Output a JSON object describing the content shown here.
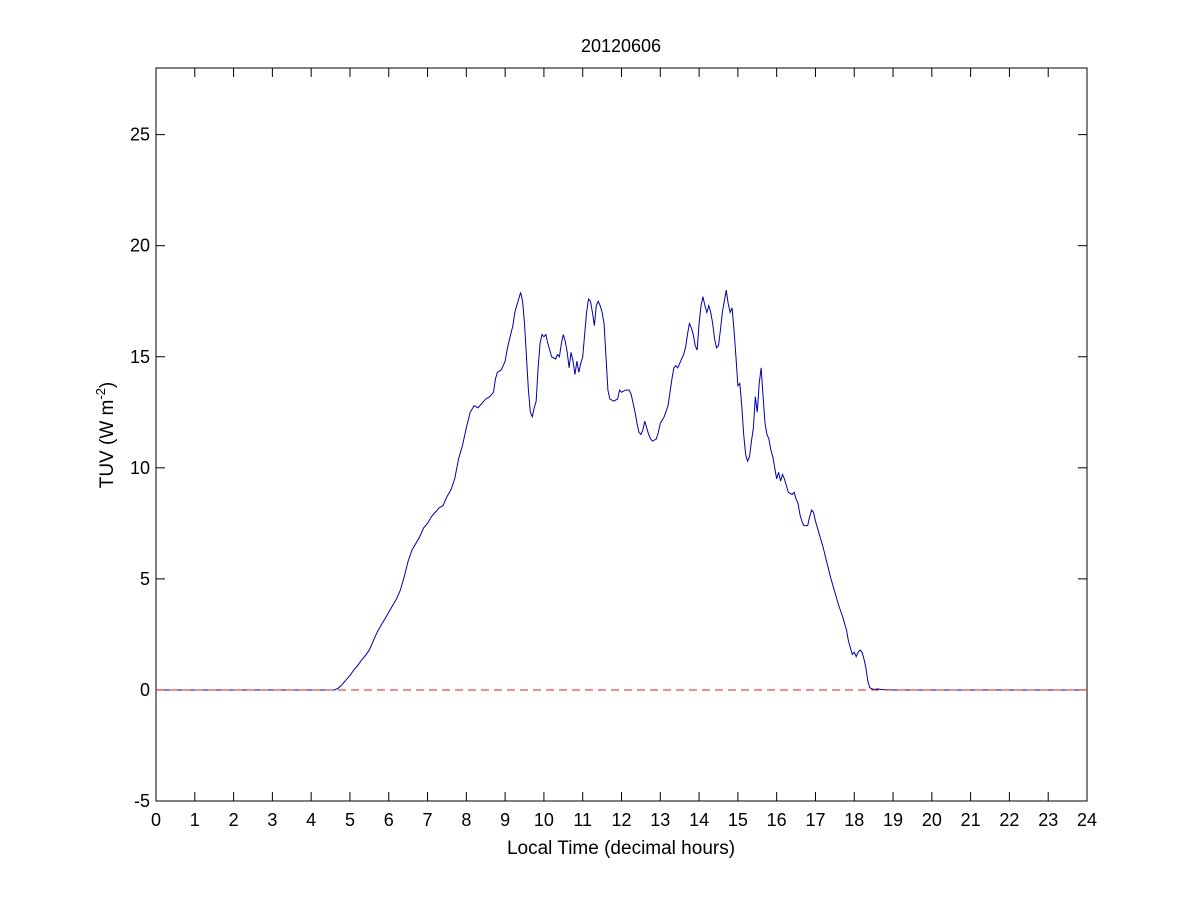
{
  "chart_data": {
    "type": "line",
    "title": "20120606",
    "xlabel": "Local Time (decimal hours)",
    "ylabel": {
      "main": "TUV (W m",
      "superscript": "-2",
      "suffix": ")"
    },
    "xlim": [
      0,
      24
    ],
    "ylim": [
      -5,
      28
    ],
    "xticks": [
      0,
      1,
      2,
      3,
      4,
      5,
      6,
      7,
      8,
      9,
      10,
      11,
      12,
      13,
      14,
      15,
      16,
      17,
      18,
      19,
      20,
      21,
      22,
      23,
      24
    ],
    "yticks": [
      -5,
      0,
      5,
      10,
      15,
      20,
      25
    ],
    "grid": false,
    "series": [
      {
        "color": "#0000aa",
        "style": "solid",
        "points": [
          [
            0,
            0
          ],
          [
            4.5,
            0
          ],
          [
            4.6,
            0
          ],
          [
            4.7,
            0.08
          ],
          [
            4.8,
            0.25
          ],
          [
            4.9,
            0.45
          ],
          [
            5.0,
            0.65
          ],
          [
            5.1,
            0.9
          ],
          [
            5.2,
            1.1
          ],
          [
            5.3,
            1.35
          ],
          [
            5.4,
            1.55
          ],
          [
            5.5,
            1.8
          ],
          [
            5.6,
            2.2
          ],
          [
            5.7,
            2.6
          ],
          [
            5.8,
            2.9
          ],
          [
            5.9,
            3.2
          ],
          [
            6.0,
            3.5
          ],
          [
            6.1,
            3.8
          ],
          [
            6.2,
            4.1
          ],
          [
            6.3,
            4.5
          ],
          [
            6.4,
            5.1
          ],
          [
            6.5,
            5.8
          ],
          [
            6.6,
            6.3
          ],
          [
            6.7,
            6.6
          ],
          [
            6.8,
            6.9
          ],
          [
            6.9,
            7.3
          ],
          [
            7.0,
            7.5
          ],
          [
            7.1,
            7.8
          ],
          [
            7.2,
            8.0
          ],
          [
            7.3,
            8.2
          ],
          [
            7.4,
            8.3
          ],
          [
            7.5,
            8.7
          ],
          [
            7.6,
            9.0
          ],
          [
            7.7,
            9.5
          ],
          [
            7.8,
            10.4
          ],
          [
            7.9,
            11.0
          ],
          [
            8.0,
            11.8
          ],
          [
            8.1,
            12.5
          ],
          [
            8.2,
            12.8
          ],
          [
            8.3,
            12.7
          ],
          [
            8.4,
            12.9
          ],
          [
            8.5,
            13.1
          ],
          [
            8.6,
            13.2
          ],
          [
            8.7,
            13.4
          ],
          [
            8.75,
            14.0
          ],
          [
            8.8,
            14.3
          ],
          [
            8.9,
            14.4
          ],
          [
            9.0,
            14.8
          ],
          [
            9.05,
            15.3
          ],
          [
            9.1,
            15.7
          ],
          [
            9.2,
            16.4
          ],
          [
            9.25,
            17.0
          ],
          [
            9.3,
            17.3
          ],
          [
            9.35,
            17.6
          ],
          [
            9.4,
            17.9
          ],
          [
            9.45,
            17.5
          ],
          [
            9.5,
            16.5
          ],
          [
            9.55,
            15.0
          ],
          [
            9.6,
            13.5
          ],
          [
            9.65,
            12.5
          ],
          [
            9.7,
            12.3
          ],
          [
            9.75,
            12.7
          ],
          [
            9.8,
            13.0
          ],
          [
            9.85,
            14.5
          ],
          [
            9.9,
            15.6
          ],
          [
            9.95,
            16.0
          ],
          [
            10.0,
            15.9
          ],
          [
            10.05,
            16.0
          ],
          [
            10.1,
            15.6
          ],
          [
            10.15,
            15.3
          ],
          [
            10.2,
            15.0
          ],
          [
            10.3,
            14.9
          ],
          [
            10.35,
            15.1
          ],
          [
            10.4,
            15.0
          ],
          [
            10.45,
            15.6
          ],
          [
            10.5,
            16.0
          ],
          [
            10.55,
            15.7
          ],
          [
            10.6,
            15.2
          ],
          [
            10.65,
            14.5
          ],
          [
            10.7,
            15.2
          ],
          [
            10.75,
            14.8
          ],
          [
            10.8,
            14.2
          ],
          [
            10.85,
            14.8
          ],
          [
            10.9,
            14.3
          ],
          [
            10.95,
            14.7
          ],
          [
            11.0,
            15.0
          ],
          [
            11.05,
            16.0
          ],
          [
            11.1,
            17.0
          ],
          [
            11.15,
            17.6
          ],
          [
            11.2,
            17.5
          ],
          [
            11.25,
            17.0
          ],
          [
            11.3,
            16.4
          ],
          [
            11.35,
            17.3
          ],
          [
            11.4,
            17.5
          ],
          [
            11.45,
            17.3
          ],
          [
            11.5,
            17.0
          ],
          [
            11.55,
            16.5
          ],
          [
            11.6,
            15.0
          ],
          [
            11.65,
            13.5
          ],
          [
            11.7,
            13.1
          ],
          [
            11.8,
            13.0
          ],
          [
            11.9,
            13.1
          ],
          [
            11.95,
            13.5
          ],
          [
            12.0,
            13.4
          ],
          [
            12.1,
            13.5
          ],
          [
            12.2,
            13.5
          ],
          [
            12.25,
            13.3
          ],
          [
            12.3,
            12.9
          ],
          [
            12.35,
            12.5
          ],
          [
            12.4,
            12.0
          ],
          [
            12.45,
            11.6
          ],
          [
            12.5,
            11.5
          ],
          [
            12.55,
            11.7
          ],
          [
            12.6,
            12.1
          ],
          [
            12.65,
            11.8
          ],
          [
            12.7,
            11.5
          ],
          [
            12.75,
            11.3
          ],
          [
            12.8,
            11.2
          ],
          [
            12.9,
            11.3
          ],
          [
            12.95,
            11.6
          ],
          [
            13.0,
            12.0
          ],
          [
            13.1,
            12.3
          ],
          [
            13.2,
            12.8
          ],
          [
            13.25,
            13.4
          ],
          [
            13.3,
            14.0
          ],
          [
            13.35,
            14.5
          ],
          [
            13.4,
            14.6
          ],
          [
            13.45,
            14.5
          ],
          [
            13.5,
            14.7
          ],
          [
            13.55,
            14.9
          ],
          [
            13.6,
            15.1
          ],
          [
            13.65,
            15.4
          ],
          [
            13.7,
            16.0
          ],
          [
            13.75,
            16.5
          ],
          [
            13.8,
            16.3
          ],
          [
            13.85,
            16.0
          ],
          [
            13.9,
            15.5
          ],
          [
            13.95,
            15.3
          ],
          [
            14.0,
            16.5
          ],
          [
            14.05,
            17.3
          ],
          [
            14.1,
            17.7
          ],
          [
            14.15,
            17.3
          ],
          [
            14.2,
            17.0
          ],
          [
            14.25,
            17.3
          ],
          [
            14.3,
            17.0
          ],
          [
            14.35,
            16.5
          ],
          [
            14.4,
            15.8
          ],
          [
            14.45,
            15.4
          ],
          [
            14.5,
            15.5
          ],
          [
            14.55,
            16.2
          ],
          [
            14.6,
            17.0
          ],
          [
            14.65,
            17.5
          ],
          [
            14.7,
            18.0
          ],
          [
            14.75,
            17.4
          ],
          [
            14.8,
            17.0
          ],
          [
            14.85,
            17.2
          ],
          [
            14.9,
            16.2
          ],
          [
            14.95,
            15.0
          ],
          [
            15.0,
            13.7
          ],
          [
            15.05,
            13.8
          ],
          [
            15.1,
            12.8
          ],
          [
            15.15,
            11.5
          ],
          [
            15.2,
            10.6
          ],
          [
            15.25,
            10.3
          ],
          [
            15.3,
            10.5
          ],
          [
            15.35,
            11.2
          ],
          [
            15.4,
            11.8
          ],
          [
            15.45,
            13.2
          ],
          [
            15.5,
            12.5
          ],
          [
            15.55,
            13.8
          ],
          [
            15.6,
            14.5
          ],
          [
            15.65,
            13.2
          ],
          [
            15.7,
            12.0
          ],
          [
            15.75,
            11.5
          ],
          [
            15.8,
            11.3
          ],
          [
            15.85,
            10.8
          ],
          [
            15.9,
            10.5
          ],
          [
            15.95,
            10.0
          ],
          [
            16.0,
            9.5
          ],
          [
            16.05,
            9.8
          ],
          [
            16.1,
            9.4
          ],
          [
            16.15,
            9.7
          ],
          [
            16.2,
            9.5
          ],
          [
            16.25,
            9.2
          ],
          [
            16.3,
            8.9
          ],
          [
            16.4,
            8.8
          ],
          [
            16.45,
            8.9
          ],
          [
            16.5,
            8.6
          ],
          [
            16.55,
            8.4
          ],
          [
            16.6,
            7.9
          ],
          [
            16.65,
            7.6
          ],
          [
            16.7,
            7.4
          ],
          [
            16.8,
            7.4
          ],
          [
            16.85,
            7.8
          ],
          [
            16.9,
            8.1
          ],
          [
            16.95,
            8.0
          ],
          [
            17.0,
            7.6
          ],
          [
            17.1,
            7.0
          ],
          [
            17.2,
            6.4
          ],
          [
            17.3,
            5.7
          ],
          [
            17.4,
            5.0
          ],
          [
            17.5,
            4.4
          ],
          [
            17.6,
            3.8
          ],
          [
            17.7,
            3.3
          ],
          [
            17.8,
            2.7
          ],
          [
            17.85,
            2.2
          ],
          [
            17.9,
            1.9
          ],
          [
            17.95,
            1.6
          ],
          [
            18.0,
            1.7
          ],
          [
            18.05,
            1.5
          ],
          [
            18.1,
            1.7
          ],
          [
            18.15,
            1.8
          ],
          [
            18.2,
            1.7
          ],
          [
            18.25,
            1.4
          ],
          [
            18.3,
            1.0
          ],
          [
            18.35,
            0.4
          ],
          [
            18.4,
            0.1
          ],
          [
            18.5,
            0.02
          ],
          [
            18.6,
            0.05
          ],
          [
            18.7,
            0.02
          ],
          [
            19.0,
            0
          ],
          [
            24,
            0
          ]
        ]
      },
      {
        "color": "#dd2222",
        "style": "dashed",
        "points": [
          [
            0,
            0
          ],
          [
            24,
            0
          ]
        ]
      }
    ]
  }
}
